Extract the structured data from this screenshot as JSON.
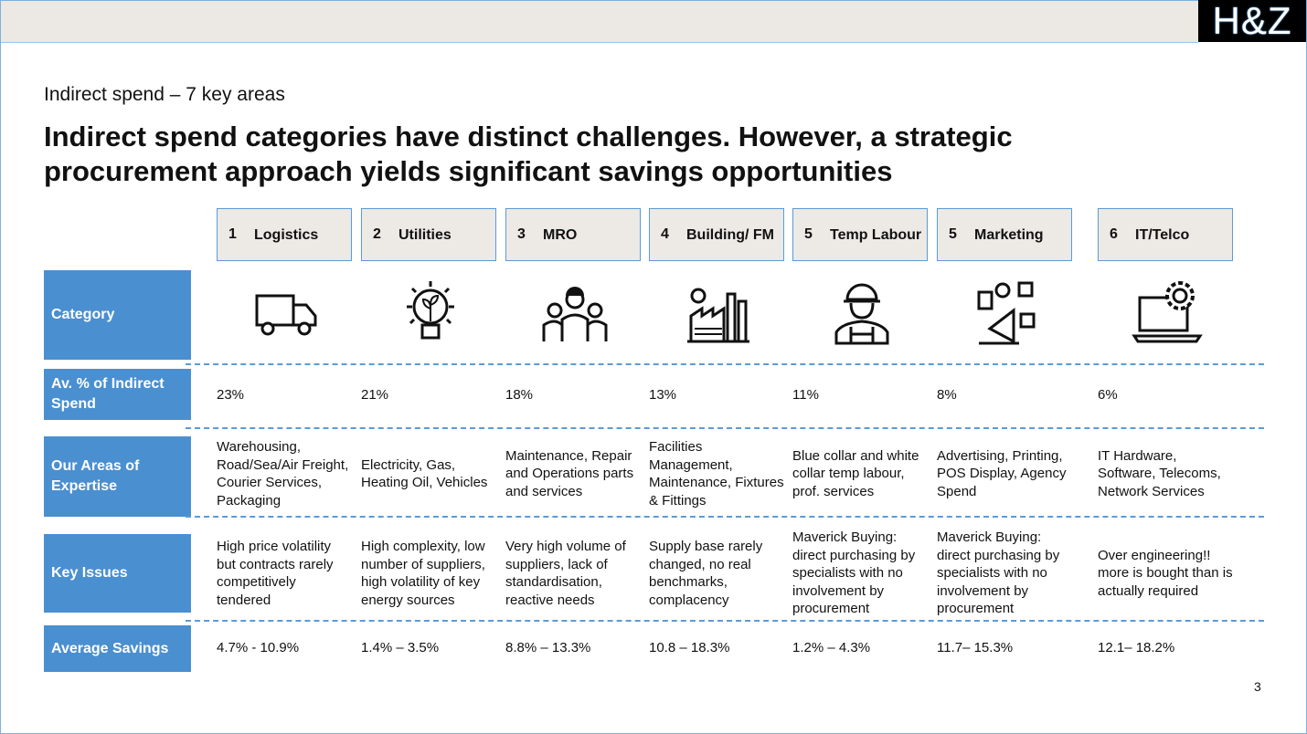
{
  "logo": "H&Z",
  "subtitle": "Indirect spend  – 7 key areas",
  "title": "Indirect spend categories have distinct challenges. However, a strategic procurement approach yields significant savings opportunities",
  "row_labels": [
    "Category",
    "Av. % of Indirect Spend",
    "Our Areas of Expertise",
    "Key Issues",
    "Average Savings"
  ],
  "accent_color": "#4a8fd0",
  "columns": [
    {
      "num": "1",
      "name": "Logistics",
      "icon": "delivery-truck-icon",
      "share": "23%",
      "expertise": "Warehousing, Road/Sea/Air Freight, Courier Services, Packaging",
      "issues": "High price volatility but contracts rarely competitively tendered",
      "savings": "4.7% -  10.9%"
    },
    {
      "num": "2",
      "name": "Utilities",
      "icon": "lightbulb-leaf-icon",
      "share": "21%",
      "expertise": "Electricity, Gas, Heating Oil, Vehicles",
      "issues": "High complexity, low number of suppliers, high volatility of key energy sources",
      "savings": "1.4% – 3.5%"
    },
    {
      "num": "3",
      "name": "MRO",
      "icon": "workers-group-icon",
      "share": "18%",
      "expertise": "Maintenance, Repair and Operations parts and services",
      "issues": "Very high volume of suppliers, lack of standardisation, reactive needs",
      "savings": "8.8%  – 13.3%"
    },
    {
      "num": "4",
      "name": "Building/ FM",
      "icon": "factory-icon",
      "share": "13%",
      "expertise": "Facilities Management, Maintenance, Fixtures & Fittings",
      "issues": "Supply base rarely changed, no real benchmarks, complacency",
      "savings": "10.8 – 18.3%"
    },
    {
      "num": "5",
      "name": "Temp Labour",
      "icon": "worker-hardhat-icon",
      "share": "11%",
      "expertise": "Blue collar and white collar   temp labour, prof. services",
      "issues": "Maverick Buying: direct purchasing by specialists with no involvement by procurement",
      "savings": "1.2% – 4.3%"
    },
    {
      "num": "5",
      "name": "Marketing",
      "icon": "digital-marketing-icon",
      "share": "8%",
      "expertise": "Advertising, Printing, POS Display, Agency Spend",
      "issues": "Maverick Buying: direct purchasing by specialists with no involvement by procurement",
      "savings": "11.7–  15.3%"
    },
    {
      "num": "6",
      "name": "IT/Telco",
      "icon": "laptop-gear-icon",
      "share": "6%",
      "expertise": "IT Hardware, Software, Telecoms, Network Services",
      "issues": "Over engineering!! more is bought than is  actually required",
      "savings": "12.1–  18.2%"
    }
  ],
  "page_number": "3"
}
